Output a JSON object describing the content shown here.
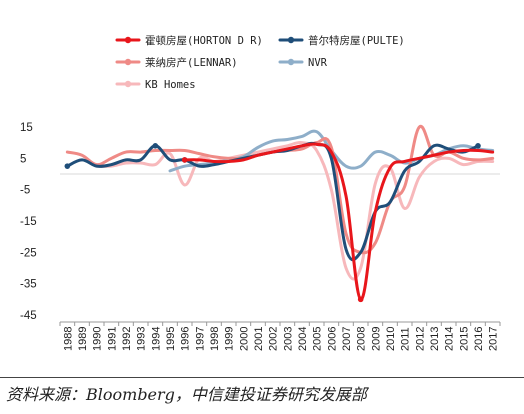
{
  "source": "资料来源：Bloomberg，中信建投证券研究发展部",
  "colors": {
    "horton": "#e8161b",
    "pulte": "#1f4e79",
    "lennar": "#ef8a86",
    "nvr": "#8eaec9",
    "kb": "#f7b8bb"
  },
  "chart_data": {
    "type": "line",
    "title": "",
    "xlabel": "",
    "ylabel": "",
    "ylim": [
      -45,
      15
    ],
    "yticks": [
      15,
      5,
      -5,
      -15,
      -25,
      -35,
      -45
    ],
    "legend_position": "top",
    "categories": [
      "1988",
      "1989",
      "1990",
      "1991",
      "1992",
      "1993",
      "1994",
      "1995",
      "1996",
      "1997",
      "1998",
      "1999",
      "2000",
      "2001",
      "2002",
      "2003",
      "2004",
      "2005",
      "2006",
      "2007",
      "2008",
      "2009",
      "2010",
      "2011",
      "2012",
      "2013",
      "2014",
      "2015",
      "2016",
      "2017"
    ],
    "series": [
      {
        "name": "霍顿房屋(HORTON D R)",
        "key": "horton",
        "marker": true,
        "values": [
          null,
          null,
          null,
          null,
          null,
          null,
          null,
          null,
          4.5,
          4.5,
          4,
          4,
          4.5,
          6,
          7,
          8,
          9,
          9.5,
          7,
          -7,
          -40,
          -12,
          2,
          4,
          5,
          6,
          7,
          7.5,
          7.5,
          7
        ]
      },
      {
        "name": "普尔特房屋(PULTE)",
        "key": "pulte",
        "marker": true,
        "values": [
          2.5,
          4.5,
          2.5,
          3,
          4.5,
          4.5,
          9,
          4.5,
          4.5,
          2.5,
          3,
          4,
          5,
          6,
          7,
          7.5,
          9,
          9.5,
          5,
          -24,
          -25,
          -12,
          -9,
          1,
          4,
          9,
          8,
          7,
          9,
          null
        ]
      },
      {
        "name": "莱纳房产(LENNAR)",
        "key": "lennar",
        "marker": true,
        "values": [
          7,
          6,
          3,
          5,
          7,
          7,
          7.5,
          7.5,
          7.5,
          6.5,
          5.5,
          5,
          5,
          6,
          7,
          7.5,
          8,
          10,
          8.5,
          -19,
          -25,
          -22,
          -9,
          -4,
          15,
          6,
          7,
          5,
          4.5,
          5
        ]
      },
      {
        "name": "NVR",
        "key": "nvr",
        "marker": true,
        "values": [
          null,
          null,
          null,
          null,
          null,
          null,
          null,
          1,
          2.5,
          3,
          3.5,
          4.5,
          5.5,
          8.5,
          10.5,
          11,
          12,
          13.5,
          7.5,
          2.5,
          2.5,
          7,
          6,
          3.5,
          5,
          6,
          8,
          9,
          8,
          7.5
        ]
      },
      {
        "name": "KB Homes",
        "key": "kb",
        "marker": true,
        "values": [
          null,
          null,
          2.5,
          2.5,
          3.5,
          3.5,
          3,
          6.5,
          -3.5,
          5,
          4,
          5,
          6,
          7,
          8,
          9,
          10,
          7.5,
          -5,
          -30,
          -30,
          -3,
          2,
          -11,
          -1,
          4,
          5,
          3,
          4,
          4
        ]
      }
    ]
  }
}
